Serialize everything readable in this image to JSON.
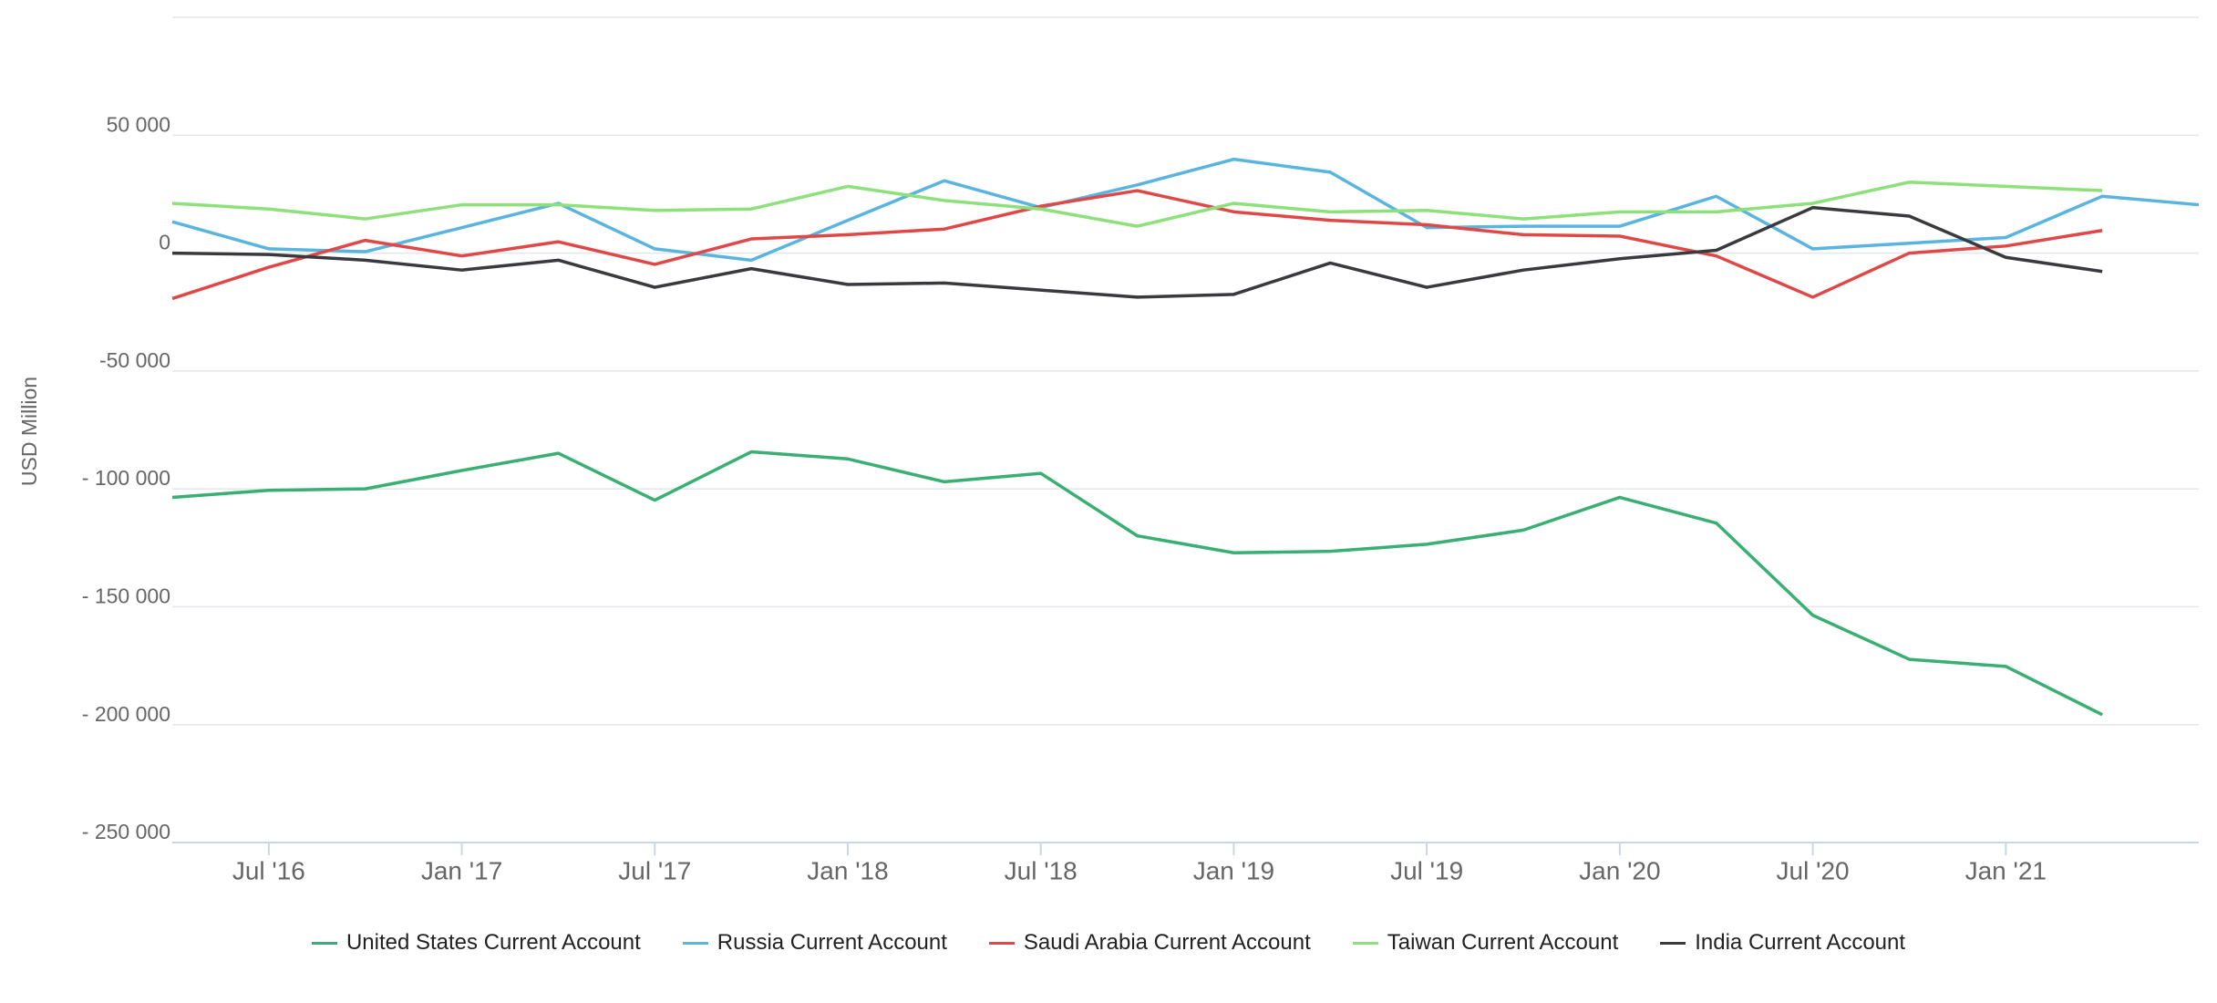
{
  "chart_data": {
    "type": "line",
    "y_label": "USD Million",
    "categories": [
      null,
      "Jul '16",
      null,
      "Jan '17",
      null,
      "Jul '17",
      null,
      "Jan '18",
      null,
      "Jul '18",
      null,
      "Jan '19",
      null,
      "Jul '19",
      null,
      "Jan '20",
      null,
      "Jul '20",
      null,
      "Jan '21",
      null,
      null
    ],
    "ylim": [
      -250000,
      100000
    ],
    "yticks": [
      {
        "value": 50000,
        "label": "50 000"
      },
      0,
      {
        "value": -50000,
        "label": "-50 000"
      },
      {
        "value": -100000,
        "label": "- 100 000"
      },
      {
        "value": -150000,
        "label": "- 150 000"
      },
      {
        "value": -200000,
        "label": "- 200 000"
      },
      {
        "value": -250000,
        "label": "- 250 000"
      }
    ],
    "grid": true,
    "series": [
      {
        "name": "United States Current Account",
        "color": "#3aaf73",
        "values": [
          -103600,
          -100600,
          -100000,
          -92200,
          -84900,
          -104800,
          -84300,
          -87300,
          -97000,
          -93400,
          -119900,
          -127100,
          -126500,
          -123500,
          -117500,
          -103600,
          -114500,
          -153600,
          -172300,
          -175300,
          -195800,
          null
        ]
      },
      {
        "name": "Russia Current Account",
        "color": "#5ab4e0",
        "values": [
          13300,
          1800,
          600,
          10800,
          21100,
          1800,
          -3000,
          13900,
          30700,
          19300,
          28900,
          39800,
          34300,
          10800,
          11400,
          11400,
          24100,
          1800,
          4200,
          6600,
          24100,
          20500
        ]
      },
      {
        "name": "Saudi Arabia Current Account",
        "color": "#e04848",
        "values": [
          -19300,
          -6000,
          5400,
          -1200,
          4800,
          -4800,
          6000,
          7800,
          10200,
          19900,
          26500,
          17500,
          13900,
          12000,
          7800,
          7200,
          -1200,
          -18700,
          0,
          3000,
          9600,
          null
        ]
      },
      {
        "name": "Taiwan Current Account",
        "color": "#8ee07a",
        "values": [
          21100,
          18700,
          14500,
          20500,
          20500,
          18100,
          18700,
          28300,
          22300,
          18700,
          11400,
          21100,
          17500,
          18100,
          14500,
          17500,
          17500,
          21100,
          30100,
          28300,
          26500,
          null
        ]
      },
      {
        "name": "India Current Account",
        "color": "#3a3a3e",
        "values": [
          0,
          -600,
          -3000,
          -7200,
          -3000,
          -14500,
          -6600,
          -13300,
          -12700,
          -15700,
          -18700,
          -17500,
          -4200,
          -14500,
          -7200,
          -2400,
          1200,
          19300,
          15700,
          -1800,
          -7800,
          null
        ]
      }
    ]
  }
}
